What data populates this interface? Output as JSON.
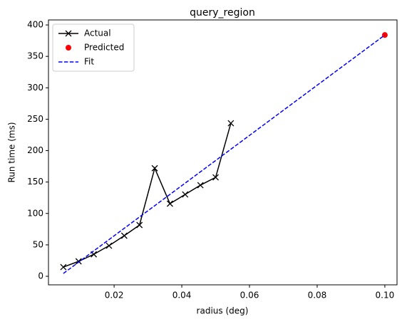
{
  "chart_data": {
    "type": "line",
    "title": "query_region",
    "x_label": "radius (deg)",
    "y_label": "Run time (ms)",
    "xlim": [
      0.0006,
      0.1036
    ],
    "ylim": [
      -13.6,
      408
    ],
    "xticks": [
      0.02,
      0.04,
      0.06,
      0.08,
      {
        "value": 0.1,
        "label": "0.10"
      }
    ],
    "yticks": [
      0,
      50,
      100,
      150,
      200,
      250,
      300,
      350,
      400
    ],
    "legend": "upper-left",
    "series": [
      {
        "name": "Actual",
        "color": "#000000",
        "marker": "x",
        "linestyle": "solid",
        "x": [
          0.005,
          0.0095,
          0.014,
          0.0185,
          0.023,
          0.0275,
          0.032,
          0.0365,
          0.041,
          0.0455,
          0.05,
          0.0545
        ],
        "values": [
          14.7,
          23.8,
          35,
          48.7,
          64.6,
          81.6,
          172,
          115.6,
          130.3,
          145,
          157.5,
          243.6
        ]
      },
      {
        "name": "Predicted",
        "color": "#ff0000",
        "marker": "o",
        "linestyle": "none",
        "x": [
          0.1
        ],
        "values": [
          384
        ]
      },
      {
        "name": "Fit",
        "color": "#0000ff",
        "marker": "none",
        "linestyle": "dashed",
        "x": [
          0.005,
          0.1
        ],
        "values": [
          4.5,
          384
        ]
      }
    ]
  }
}
